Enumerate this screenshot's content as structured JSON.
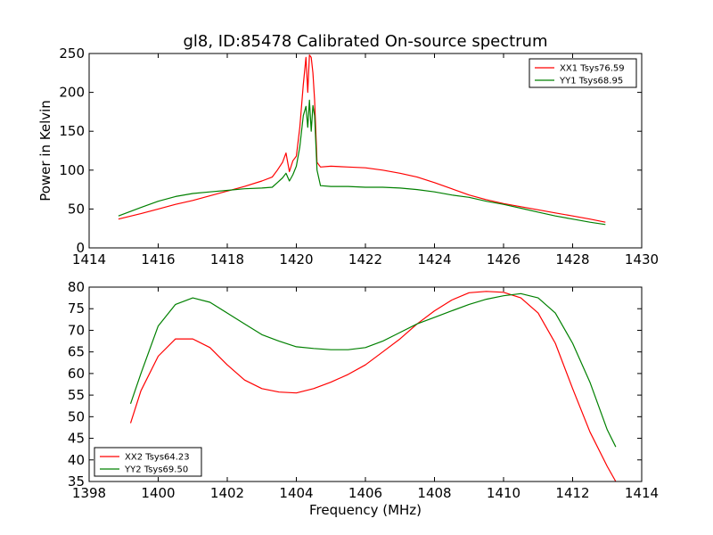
{
  "chart_data": [
    {
      "type": "line",
      "title": "gl8, ID:85478 Calibrated On-source spectrum",
      "xlabel": "",
      "ylabel": "Power in Kelvin",
      "xlim": [
        1414,
        1430
      ],
      "ylim": [
        0,
        250
      ],
      "xticks": [
        "1414",
        "1416",
        "1418",
        "1420",
        "1422",
        "1424",
        "1426",
        "1428",
        "1430"
      ],
      "yticks": [
        "0",
        "50",
        "100",
        "150",
        "200",
        "250"
      ],
      "grid": false,
      "legend_position": "top-right",
      "series": [
        {
          "name": "XX1 Tsys76.59",
          "color": "#ff0000",
          "x": [
            1414.85,
            1415.5,
            1416,
            1416.5,
            1417,
            1417.5,
            1418,
            1418.5,
            1419,
            1419.3,
            1419.45,
            1419.6,
            1419.7,
            1419.8,
            1419.9,
            1420,
            1420.1,
            1420.2,
            1420.28,
            1420.33,
            1420.38,
            1420.43,
            1420.48,
            1420.53,
            1420.6,
            1420.7,
            1421,
            1421.5,
            1422,
            1422.5,
            1423,
            1423.5,
            1424,
            1424.5,
            1425,
            1425.5,
            1426,
            1426.5,
            1427,
            1427.5,
            1428,
            1428.5,
            1428.95
          ],
          "y": [
            37,
            44,
            50,
            56,
            61,
            67,
            73,
            79,
            86,
            91,
            100,
            110,
            122,
            98,
            112,
            118,
            155,
            210,
            245,
            200,
            248,
            245,
            225,
            190,
            110,
            104,
            105,
            104,
            103,
            100,
            96,
            91,
            84,
            76,
            68,
            62,
            57,
            53,
            49,
            45,
            41,
            37,
            33
          ]
        },
        {
          "name": "YY1 Tsys68.95",
          "color": "#008000",
          "x": [
            1414.85,
            1415.5,
            1416,
            1416.5,
            1417,
            1417.5,
            1418,
            1418.5,
            1419,
            1419.3,
            1419.45,
            1419.6,
            1419.7,
            1419.8,
            1419.9,
            1420,
            1420.1,
            1420.2,
            1420.28,
            1420.33,
            1420.38,
            1420.43,
            1420.48,
            1420.53,
            1420.6,
            1420.7,
            1421,
            1421.5,
            1422,
            1422.5,
            1423,
            1423.5,
            1424,
            1424.5,
            1425,
            1425.5,
            1426,
            1426.5,
            1427,
            1427.5,
            1428,
            1428.5,
            1428.95
          ],
          "y": [
            41,
            52,
            60,
            66,
            70,
            72,
            74,
            76,
            77,
            78,
            84,
            90,
            96,
            86,
            94,
            105,
            130,
            170,
            182,
            155,
            190,
            150,
            183,
            170,
            100,
            80,
            79,
            79,
            78,
            78,
            77,
            75,
            72,
            68,
            65,
            60,
            56,
            51,
            46,
            41,
            37,
            33,
            30
          ]
        }
      ]
    },
    {
      "type": "line",
      "title": "",
      "xlabel": "Frequency (MHz)",
      "ylabel": "",
      "xlim": [
        1398,
        1414
      ],
      "ylim": [
        35,
        80
      ],
      "xticks": [
        "1398",
        "1400",
        "1402",
        "1404",
        "1406",
        "1408",
        "1410",
        "1412",
        "1414"
      ],
      "yticks": [
        "35",
        "40",
        "45",
        "50",
        "55",
        "60",
        "65",
        "70",
        "75",
        "80"
      ],
      "grid": false,
      "legend_position": "bottom-left",
      "series": [
        {
          "name": "XX2 Tsys64.23",
          "color": "#ff0000",
          "x": [
            1399.2,
            1399.5,
            1400,
            1400.5,
            1401,
            1401.5,
            1402,
            1402.5,
            1403,
            1403.5,
            1404,
            1404.5,
            1405,
            1405.5,
            1406,
            1406.5,
            1407,
            1407.5,
            1408,
            1408.5,
            1409,
            1409.5,
            1410,
            1410.5,
            1411,
            1411.5,
            1412,
            1412.5,
            1413,
            1413.25
          ],
          "y": [
            48.5,
            56,
            64,
            68,
            68,
            66,
            62,
            58.5,
            56.5,
            55.7,
            55.5,
            56.5,
            58,
            59.8,
            62,
            65,
            68,
            71.5,
            74.5,
            77,
            78.7,
            79,
            78.8,
            77.5,
            74,
            67,
            56.5,
            46.5,
            38.5,
            35
          ]
        },
        {
          "name": "YY2 Tsys69.50",
          "color": "#008000",
          "x": [
            1399.2,
            1399.5,
            1400,
            1400.5,
            1401,
            1401.5,
            1402,
            1402.5,
            1403,
            1403.5,
            1404,
            1404.5,
            1405,
            1405.5,
            1406,
            1406.5,
            1407,
            1407.5,
            1408,
            1408.5,
            1409,
            1409.5,
            1410,
            1410.5,
            1411,
            1411.5,
            1412,
            1412.5,
            1413,
            1413.25
          ],
          "y": [
            53,
            60,
            71,
            76,
            77.5,
            76.5,
            74,
            71.5,
            69,
            67.5,
            66.2,
            65.8,
            65.5,
            65.5,
            66,
            67.5,
            69.5,
            71.5,
            73,
            74.5,
            76,
            77.2,
            78,
            78.5,
            77.5,
            74,
            67,
            58,
            47,
            43
          ]
        }
      ]
    }
  ]
}
